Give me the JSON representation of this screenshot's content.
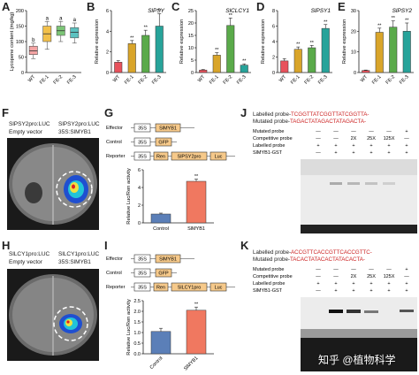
{
  "panel_letters": [
    "A",
    "B",
    "C",
    "D",
    "E",
    "F",
    "G",
    "H",
    "I",
    "J",
    "K"
  ],
  "colors": {
    "wt": "#f4a4a4",
    "fe1": "#f2c04a",
    "fe2": "#7cc576",
    "fe3": "#5cc2c0",
    "bar_wt": "#e8525c",
    "bar_fe1": "#d9a52a",
    "bar_fe2": "#5aaa4a",
    "bar_fe3": "#27a39a",
    "control_bar": "#5b7fb8",
    "slmyb1_bar": "#f07860",
    "box_35s": "#ffffff",
    "box_gene": "#f6c98a",
    "probe_red": "#cc2222"
  },
  "chart_data": [
    {
      "panel": "A",
      "type": "box",
      "ylabel": "Lycopene content (mg/kg)",
      "ylim": [
        0,
        200
      ],
      "yticks": [
        "0",
        "50",
        "100",
        "150",
        "200"
      ],
      "categories": [
        "WT",
        "FE-1",
        "FE-2",
        "FE-3"
      ],
      "medians": [
        70,
        125,
        135,
        130
      ],
      "q1": [
        58,
        100,
        120,
        112
      ],
      "q3": [
        85,
        150,
        150,
        145
      ],
      "whisker_low": [
        45,
        75,
        100,
        95
      ],
      "whisker_high": [
        95,
        165,
        165,
        160
      ],
      "letters": [
        "b",
        "a",
        "a",
        "a"
      ]
    },
    {
      "panel": "B",
      "type": "bar",
      "title": "SlPSY",
      "ylabel": "Relative expression",
      "ylim": [
        0,
        6
      ],
      "yticks": [
        "0",
        "2",
        "4",
        "6"
      ],
      "categories": [
        "WT",
        "FE-1",
        "FE-2",
        "FE-3"
      ],
      "values": [
        1.0,
        2.8,
        3.6,
        4.5
      ],
      "errors": [
        0.15,
        0.3,
        0.5,
        1.2
      ],
      "stars": [
        "",
        "**",
        "**",
        "**"
      ]
    },
    {
      "panel": "C",
      "type": "bar",
      "title": "SlCLCY1",
      "ylabel": "Relative expression",
      "ylim": [
        0,
        25
      ],
      "yticks": [
        "0",
        "5",
        "10",
        "15",
        "20",
        "25"
      ],
      "categories": [
        "WT",
        "FE-1",
        "FE-2",
        "FE-3"
      ],
      "values": [
        1.0,
        7.0,
        19.0,
        3.0
      ],
      "errors": [
        0.2,
        1.0,
        3.0,
        0.5
      ],
      "stars": [
        "",
        "**",
        "**",
        "**"
      ]
    },
    {
      "panel": "D",
      "type": "bar",
      "title": "SlPSY1",
      "ylabel": "Relative expression",
      "ylim": [
        0,
        8
      ],
      "yticks": [
        "0",
        "2",
        "4",
        "6",
        "8"
      ],
      "categories": [
        "WT",
        "FE-1",
        "FE-2",
        "FE-3"
      ],
      "values": [
        1.5,
        3.0,
        3.2,
        5.7
      ],
      "errors": [
        0.3,
        0.3,
        0.3,
        0.5
      ],
      "stars": [
        "",
        "**",
        "**",
        "**"
      ]
    },
    {
      "panel": "E",
      "type": "bar",
      "title": "SlPSY2",
      "ylabel": "Relative expression",
      "ylim": [
        0,
        30
      ],
      "yticks": [
        "0",
        "10",
        "20",
        "30"
      ],
      "categories": [
        "WT",
        "FE-1",
        "FE-2",
        "FE-3"
      ],
      "values": [
        1.0,
        19.5,
        22.0,
        20.0
      ],
      "errors": [
        0.2,
        2.0,
        3.0,
        4.0
      ],
      "stars": [
        "",
        "**",
        "**",
        "**"
      ]
    },
    {
      "panel": "G",
      "type": "bar",
      "ylabel": "Relative Luc/Ren activity",
      "ylim": [
        0,
        6
      ],
      "yticks": [
        "0",
        "2",
        "4",
        "6"
      ],
      "categories": [
        "Control",
        "SlMYB1"
      ],
      "values": [
        1.0,
        4.7
      ],
      "errors": [
        0.1,
        0.25
      ],
      "stars": [
        "",
        "**"
      ]
    },
    {
      "panel": "I",
      "type": "bar",
      "ylabel": "Relative Luc/Ren activity",
      "ylim": [
        0,
        2.5
      ],
      "yticks": [
        "0.0",
        "0.5",
        "1.0",
        "1.5",
        "2.0",
        "2.5"
      ],
      "categories": [
        "Control",
        "SlMYB1"
      ],
      "values": [
        1.05,
        2.05
      ],
      "errors": [
        0.15,
        0.15
      ],
      "stars": [
        "",
        "**"
      ]
    }
  ],
  "F": {
    "label_tl": "SlPSY2pro:LUC",
    "label_tr": "SlPSY2pro:LUC",
    "label_bl": "Empty vector",
    "label_br": "35S:SlMYB1"
  },
  "H": {
    "label_tl": "SlLCY1pro:LUC",
    "label_tr": "SlLCY1pro:LUC",
    "label_bl": "Empty vector",
    "label_br": "35S:SlMYB1"
  },
  "G_constructs": {
    "effector": "Effector",
    "control": "Control",
    "reporter": "Reporter",
    "box_35s": "35S",
    "box_gene": "SlMYB1",
    "box_gfp": "GFP",
    "box_ren": "Ren",
    "box_pro": "SlPSY2pro",
    "box_luc": "Luc"
  },
  "I_constructs": {
    "effector": "Effector",
    "control": "Control",
    "reporter": "Reporter",
    "box_35s": "35S",
    "box_gene": "SlMYB1",
    "box_gfp": "GFP",
    "box_ren": "Ren",
    "box_pro": "SlLCY1pro",
    "box_luc": "Luc"
  },
  "J": {
    "labelled_probe_prefix": "Labelled probe-",
    "labelled_probe_seq": "TCGGTTATCGGTTATCGGTTA-",
    "mutated_probe_prefix": "Mutated probe-",
    "mutated_probe_seq": "TAGACTATAGACTATAGACTA-",
    "row_labels": [
      "Mutated probe",
      "Competitive probe",
      "Labelled probe",
      "SlMYB1-GST"
    ],
    "competitive_values": [
      "—",
      "—",
      "2X",
      "25X",
      "125X",
      "—"
    ],
    "mutated_values": [
      "—",
      "—",
      "—",
      "—",
      "—",
      "+"
    ],
    "labelled_values": [
      "+",
      "+",
      "+",
      "+",
      "+",
      "+"
    ],
    "gst_values": [
      "—",
      "+",
      "+",
      "+",
      "+",
      "+"
    ]
  },
  "K": {
    "labelled_probe_prefix": "Labelled probe-",
    "labelled_probe_seq": "ACCGTTCACCGTTCACCGTTC-",
    "mutated_probe_prefix": "Mutated probe-",
    "mutated_probe_seq": "TACACTATACACTATACACTA-",
    "row_labels": [
      "Mutated probe",
      "Competitive probe",
      "Labelled probe",
      "SlMYB1-GST"
    ],
    "competitive_values": [
      "—",
      "—",
      "2X",
      "25X",
      "125X",
      "—"
    ],
    "mutated_values": [
      "—",
      "—",
      "—",
      "—",
      "—",
      "+"
    ],
    "labelled_values": [
      "+",
      "+",
      "+",
      "+",
      "+",
      "+"
    ],
    "gst_values": [
      "—",
      "+",
      "+",
      "+",
      "+",
      "+"
    ]
  },
  "watermark": "知乎 @植物科学"
}
